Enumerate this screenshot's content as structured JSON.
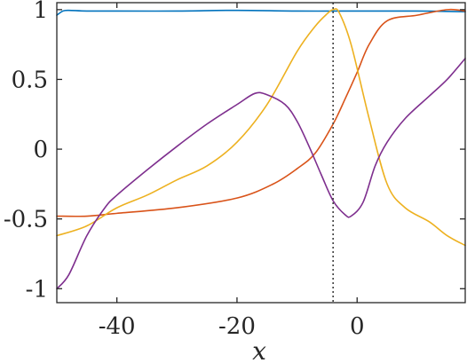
{
  "chart_data": {
    "type": "line",
    "title": "",
    "xlabel": "x",
    "ylabel": "",
    "xlim": [
      -50,
      18
    ],
    "ylim": [
      -1.1,
      1.05
    ],
    "xticks": [
      -40,
      -20,
      0
    ],
    "xtick_labels": [
      "-40",
      "-20",
      "0"
    ],
    "yticks": [
      -1,
      -0.5,
      0,
      0.5,
      1
    ],
    "ytick_labels": [
      "-1",
      "-0.5",
      "0",
      "0.5",
      "1"
    ],
    "grid": false,
    "legend": "none",
    "vertical_marker": {
      "x": -4,
      "style": "dotted",
      "color": "#404040"
    },
    "series": [
      {
        "color": "#0072BD",
        "x": [
          -50,
          -49,
          -48,
          -45,
          -40,
          -30,
          -20,
          -10,
          0,
          10,
          18
        ],
        "y": [
          0.96,
          0.99,
          0.995,
          0.99,
          0.99,
          0.99,
          0.995,
          0.99,
          0.99,
          0.99,
          0.985
        ]
      },
      {
        "color": "#D95319",
        "x": [
          -50,
          -45,
          -40,
          -30,
          -20,
          -14,
          -10,
          -7,
          -4,
          -2,
          0,
          2,
          5,
          10,
          15,
          18
        ],
        "y": [
          -0.48,
          -0.48,
          -0.46,
          -0.42,
          -0.35,
          -0.25,
          -0.14,
          -0.03,
          0.18,
          0.36,
          0.55,
          0.75,
          0.92,
          0.96,
          1.0,
          0.99
        ]
      },
      {
        "color": "#EDB120",
        "x": [
          -50,
          -45,
          -40,
          -35,
          -30,
          -25,
          -20,
          -15,
          -10,
          -7,
          -5,
          -4,
          -3,
          -1,
          2,
          5,
          8,
          12,
          15,
          18
        ],
        "y": [
          -0.62,
          -0.55,
          -0.42,
          -0.33,
          -0.22,
          -0.12,
          0.05,
          0.32,
          0.7,
          0.88,
          0.97,
          1.0,
          0.98,
          0.75,
          0.22,
          -0.25,
          -0.42,
          -0.52,
          -0.62,
          -0.69
        ]
      },
      {
        "color": "#7E2F8E",
        "x": [
          -50,
          -48,
          -45,
          -42,
          -40,
          -35,
          -30,
          -25,
          -20,
          -17,
          -15,
          -12,
          -10,
          -8,
          -6,
          -4,
          -2,
          -1,
          1,
          3,
          5,
          8,
          12,
          15,
          18
        ],
        "y": [
          -1.0,
          -0.9,
          -0.62,
          -0.42,
          -0.33,
          -0.15,
          0.02,
          0.18,
          0.32,
          0.4,
          0.39,
          0.32,
          0.2,
          0.02,
          -0.18,
          -0.37,
          -0.47,
          -0.48,
          -0.38,
          -0.12,
          0.05,
          0.22,
          0.38,
          0.5,
          0.65
        ]
      }
    ]
  }
}
